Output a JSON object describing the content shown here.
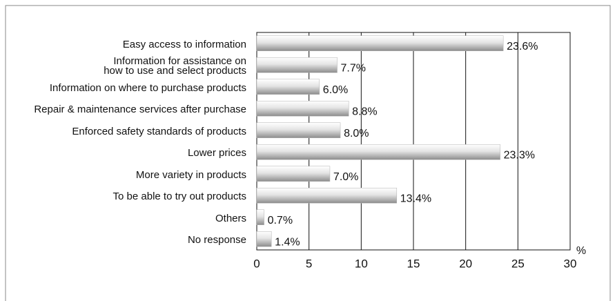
{
  "chart_data": {
    "type": "bar",
    "orientation": "horizontal",
    "categories": [
      "Easy access to information",
      "Information for assistance on\nhow to use and select products",
      "Information on where to purchase products",
      "Repair & maintenance services after purchase",
      "Enforced safety standards of products",
      "Lower prices",
      "More variety in products",
      "To be able to try out products",
      "Others",
      "No response"
    ],
    "values": [
      23.6,
      7.7,
      6.0,
      8.8,
      8.0,
      23.3,
      7.0,
      13.4,
      0.7,
      1.4
    ],
    "value_labels": [
      "23.6%",
      "7.7%",
      "6.0%",
      "8.8%",
      "8.0%",
      "23.3%",
      "7.0%",
      "13.4%",
      "0.7%",
      "1.4%"
    ],
    "xlim": [
      0,
      30
    ],
    "xticks": [
      0,
      5,
      10,
      15,
      20,
      25,
      30
    ],
    "xlabel": "%",
    "color": "#b0b0b0",
    "grid": true
  }
}
